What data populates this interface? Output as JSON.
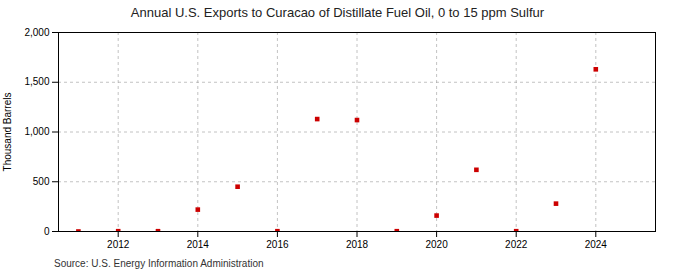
{
  "chart_data": {
    "type": "scatter",
    "title": "Annual U.S. Exports to Curacao of Distillate Fuel Oil, 0 to 15 ppm Sulfur",
    "ylabel": "Thousand Barrels",
    "source": "Source: U.S. Energy Information Administration",
    "x": [
      2011,
      2012,
      2013,
      2014,
      2015,
      2016,
      2017,
      2018,
      2019,
      2020,
      2021,
      2022,
      2023,
      2024
    ],
    "values": [
      0,
      3,
      3,
      220,
      450,
      3,
      1130,
      1120,
      3,
      160,
      620,
      3,
      280,
      1630
    ],
    "color": "#cc0000",
    "marker": "square",
    "grid": true,
    "xlim": [
      2010.5,
      2025.5
    ],
    "xticks": [
      2012,
      2014,
      2016,
      2018,
      2020,
      2022,
      2024
    ],
    "ylim": [
      0,
      2000
    ],
    "yticks": [
      0,
      500,
      {
        "value": 1000,
        "label": "1,000"
      },
      {
        "value": 1500,
        "label": "1,500"
      },
      {
        "value": 2000,
        "label": "2,000"
      }
    ]
  }
}
